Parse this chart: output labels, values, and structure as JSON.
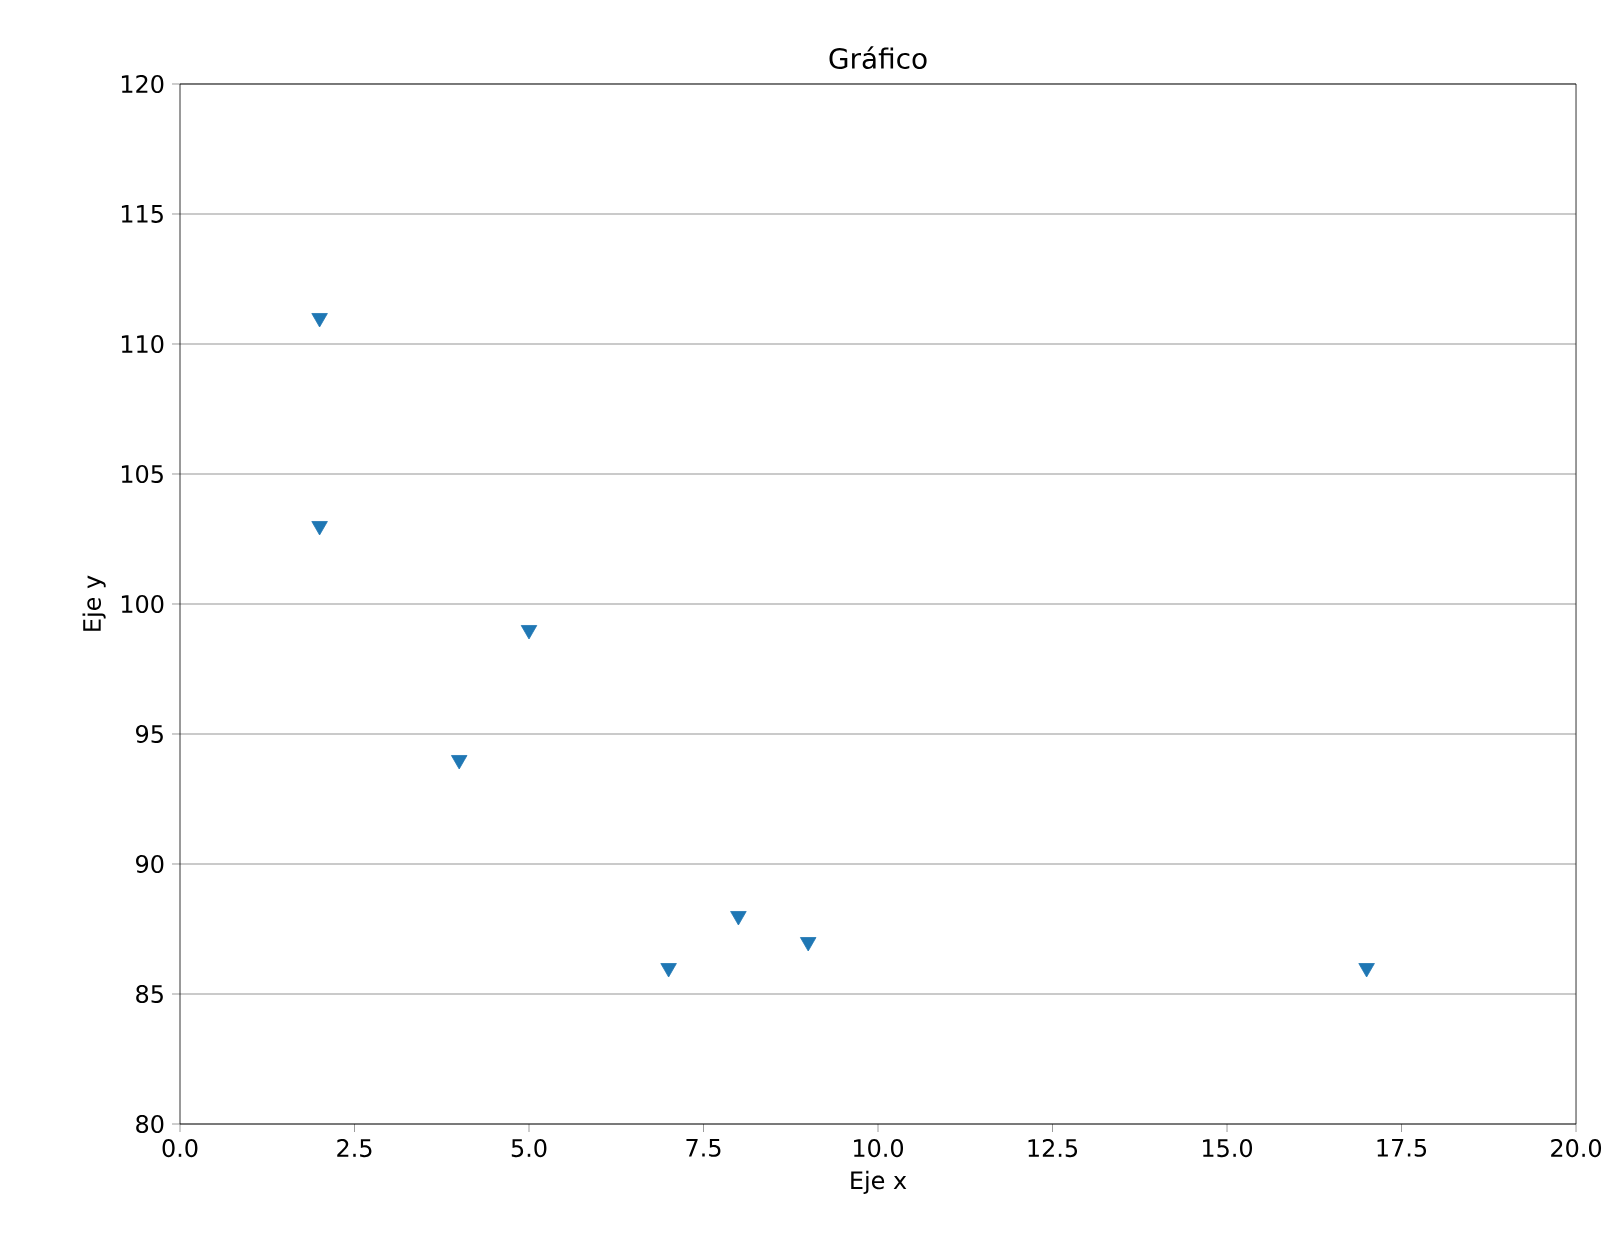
{
  "chart_data": {
    "type": "scatter",
    "title": "Gráfico",
    "xlabel": "Eje x",
    "ylabel": "Eje y",
    "x": [
      2,
      2,
      5,
      4,
      7,
      8,
      9,
      17
    ],
    "values": [
      111,
      103,
      99,
      94,
      86,
      88,
      87,
      86
    ],
    "color": "#1f77b4",
    "marker": "triangle",
    "grid": "y",
    "xlim": [
      0,
      20
    ],
    "ylim": [
      80,
      120
    ],
    "xticks": [
      {
        "value": 0,
        "label": "0.0"
      },
      {
        "value": 2.5,
        "label": "2.5"
      },
      {
        "value": 5,
        "label": "5.0"
      },
      {
        "value": 7.5,
        "label": "7.5"
      },
      {
        "value": 10,
        "label": "10.0"
      },
      {
        "value": 12.5,
        "label": "12.5"
      },
      {
        "value": 15,
        "label": "15.0"
      },
      {
        "value": 17.5,
        "label": "17.5"
      },
      {
        "value": 20,
        "label": "20.0"
      }
    ],
    "yticks": [
      80,
      85,
      90,
      95,
      100,
      105,
      110,
      115,
      120
    ]
  }
}
